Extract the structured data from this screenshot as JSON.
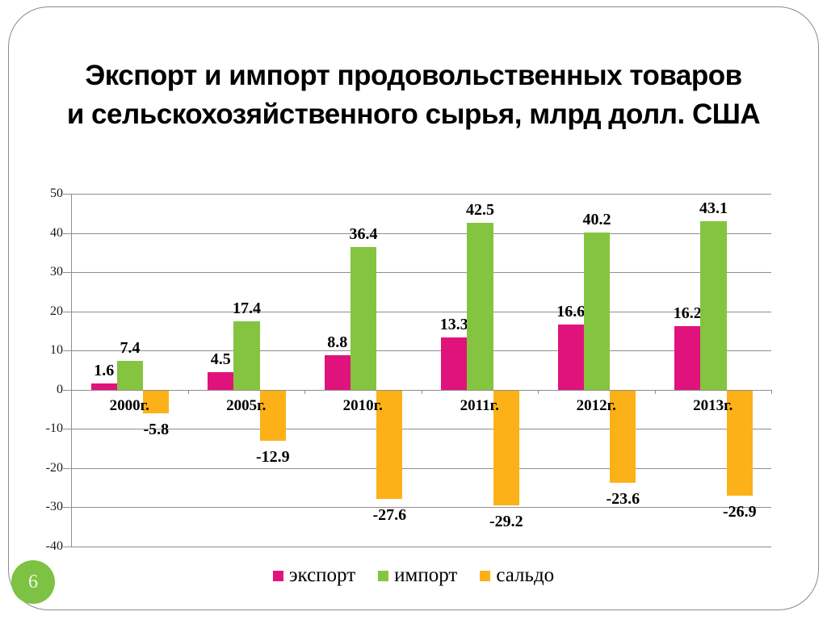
{
  "slide": {
    "title_line1": "Экспорт и импорт продовольственных товаров",
    "title_line2": "и сельскохозяйственного сырья, млрд долл. США",
    "page_number": "6"
  },
  "colors": {
    "export": "#E0137C",
    "import": "#85C440",
    "saldo": "#FBB117",
    "gridline": "#8E8E8E",
    "page_badge": "#7DC242",
    "page_badge_text": "#F2F6EC"
  },
  "chart_data": {
    "type": "bar",
    "title": "Экспорт и импорт продовольственных товаров и сельскохозяйственного сырья, млрд долл. США",
    "categories": [
      "2000г.",
      "2005г.",
      "2010г.",
      "2011г.",
      "2012г.",
      "2013г."
    ],
    "series": [
      {
        "name": "экспорт",
        "color": "#E0137C",
        "values": [
          1.6,
          4.5,
          8.8,
          13.3,
          16.6,
          16.2
        ]
      },
      {
        "name": "импорт",
        "color": "#85C440",
        "values": [
          7.4,
          17.4,
          36.4,
          42.5,
          40.2,
          43.1
        ]
      },
      {
        "name": "сальдо",
        "color": "#FBB117",
        "values": [
          -5.8,
          -12.9,
          -27.6,
          -29.2,
          -23.6,
          -26.9
        ]
      }
    ],
    "ylim": [
      -40,
      50
    ],
    "ytick_step": 10,
    "grid": true,
    "legend_position": "bottom",
    "data_labels": true
  }
}
